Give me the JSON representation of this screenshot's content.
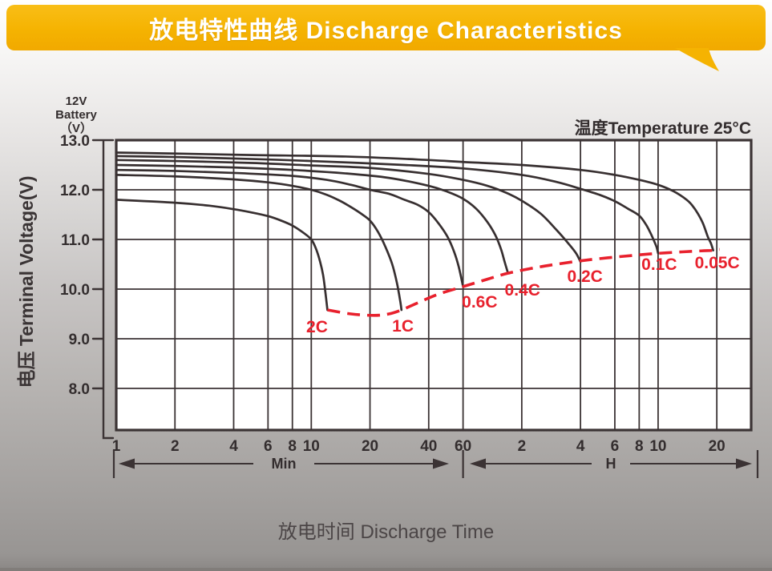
{
  "header": {
    "title": "放电特性曲线 Discharge Characteristics",
    "bg_color": "#F5B301",
    "text_color": "#FFFFFF"
  },
  "chart": {
    "unit_lines": [
      "12V",
      "Battery",
      "（V）"
    ],
    "temperature_note": "温度Temperature 25°C",
    "min_label": "Min",
    "h_label": "H"
  },
  "colors": {
    "curve": "#372f30",
    "grid": "#3b3334",
    "cutoff_red": "#e8212d",
    "axis_text": "#332d2e",
    "banner_yellow": "#f5b301",
    "plot_bg": "#ffffff"
  },
  "chart_data": {
    "type": "line",
    "title": "放电特性曲线 Discharge Characteristics",
    "xlabel": "放电时间 Discharge Time",
    "ylabel": "电压 Terminal Voltage(V)",
    "x_scale": "log",
    "x_unit": "minutes",
    "x_range_min": [
      1,
      1800
    ],
    "x_ticks_min": [
      1,
      2,
      4,
      6,
      8,
      10,
      20,
      40,
      60
    ],
    "x_ticks_hours": [
      2,
      4,
      6,
      8,
      10,
      20
    ],
    "y_ticks": [
      13.0,
      12.0,
      11.0,
      10.0,
      9.0,
      8.0
    ],
    "ylim": [
      7.2,
      13.0
    ],
    "grid": true,
    "temperature": "温度Temperature 25°C",
    "series": [
      {
        "name": "0.05C",
        "label": "0.05C",
        "label_at": [
          1205,
          10.53
        ],
        "points": [
          [
            1,
            12.75
          ],
          [
            2,
            12.73
          ],
          [
            5,
            12.7
          ],
          [
            15,
            12.67
          ],
          [
            40,
            12.6
          ],
          [
            60,
            12.56
          ],
          [
            120,
            12.5
          ],
          [
            240,
            12.4
          ],
          [
            360,
            12.3
          ],
          [
            480,
            12.2
          ],
          [
            600,
            12.1
          ],
          [
            720,
            11.97
          ],
          [
            840,
            11.8
          ],
          [
            900,
            11.68
          ],
          [
            960,
            11.52
          ],
          [
            1020,
            11.32
          ],
          [
            1080,
            11.05
          ],
          [
            1120,
            10.92
          ],
          [
            1150,
            10.78
          ]
        ]
      },
      {
        "name": "0.1C",
        "label": "0.1C",
        "label_at": [
          608,
          10.5
        ],
        "points": [
          [
            1,
            12.68
          ],
          [
            2,
            12.66
          ],
          [
            5,
            12.62
          ],
          [
            10,
            12.58
          ],
          [
            30,
            12.5
          ],
          [
            60,
            12.43
          ],
          [
            120,
            12.3
          ],
          [
            180,
            12.16
          ],
          [
            240,
            12.02
          ],
          [
            300,
            11.9
          ],
          [
            360,
            11.77
          ],
          [
            420,
            11.62
          ],
          [
            480,
            11.48
          ],
          [
            520,
            11.3
          ],
          [
            550,
            11.12
          ],
          [
            575,
            10.95
          ],
          [
            590,
            10.84
          ],
          [
            600,
            10.72
          ]
        ]
      },
      {
        "name": "0.2C",
        "label": "0.2C",
        "label_at": [
          253,
          10.26
        ],
        "points": [
          [
            1,
            12.6
          ],
          [
            2,
            12.58
          ],
          [
            5,
            12.54
          ],
          [
            10,
            12.49
          ],
          [
            20,
            12.44
          ],
          [
            40,
            12.32
          ],
          [
            60,
            12.2
          ],
          [
            80,
            12.08
          ],
          [
            100,
            11.94
          ],
          [
            120,
            11.78
          ],
          [
            150,
            11.52
          ],
          [
            180,
            11.2
          ],
          [
            210,
            10.9
          ],
          [
            228,
            10.72
          ],
          [
            240,
            10.55
          ]
        ]
      },
      {
        "name": "0.4C",
        "label": "0.4C",
        "label_at": [
          121,
          9.98
        ],
        "points": [
          [
            1,
            12.5
          ],
          [
            2,
            12.48
          ],
          [
            4,
            12.45
          ],
          [
            8,
            12.4
          ],
          [
            15,
            12.33
          ],
          [
            25,
            12.24
          ],
          [
            40,
            12.08
          ],
          [
            50,
            11.96
          ],
          [
            60,
            11.82
          ],
          [
            70,
            11.62
          ],
          [
            80,
            11.35
          ],
          [
            88,
            11.08
          ],
          [
            94,
            10.8
          ],
          [
            98,
            10.55
          ],
          [
            102,
            10.32
          ]
        ]
      },
      {
        "name": "0.6C",
        "label": "0.6C",
        "label_at": [
          73,
          9.74
        ],
        "points": [
          [
            1,
            12.4
          ],
          [
            2,
            12.38
          ],
          [
            4,
            12.34
          ],
          [
            8,
            12.28
          ],
          [
            12,
            12.2
          ],
          [
            16,
            12.1
          ],
          [
            20,
            12.0
          ],
          [
            25,
            11.92
          ],
          [
            30,
            11.8
          ],
          [
            35,
            11.7
          ],
          [
            40,
            11.55
          ],
          [
            45,
            11.32
          ],
          [
            50,
            11.05
          ],
          [
            54,
            10.75
          ],
          [
            57,
            10.45
          ],
          [
            60,
            10.05
          ]
        ]
      },
      {
        "name": "1C",
        "label": "1C",
        "label_at": [
          29.5,
          9.26
        ],
        "points": [
          [
            1,
            12.3
          ],
          [
            2,
            12.27
          ],
          [
            4,
            12.21
          ],
          [
            6,
            12.15
          ],
          [
            8,
            12.08
          ],
          [
            10,
            12.0
          ],
          [
            12,
            11.9
          ],
          [
            14,
            11.78
          ],
          [
            16,
            11.65
          ],
          [
            18,
            11.52
          ],
          [
            20,
            11.38
          ],
          [
            22,
            11.15
          ],
          [
            24,
            10.85
          ],
          [
            26,
            10.5
          ],
          [
            27.5,
            10.12
          ],
          [
            28.6,
            9.75
          ],
          [
            29,
            9.58
          ]
        ]
      },
      {
        "name": "2C",
        "label": "2C",
        "label_at": [
          10.7,
          9.24
        ],
        "points": [
          [
            1,
            11.8
          ],
          [
            2,
            11.74
          ],
          [
            3,
            11.68
          ],
          [
            4,
            11.61
          ],
          [
            5,
            11.54
          ],
          [
            6,
            11.47
          ],
          [
            7,
            11.38
          ],
          [
            8,
            11.28
          ],
          [
            9,
            11.15
          ],
          [
            10,
            11.0
          ],
          [
            10.6,
            10.8
          ],
          [
            11.1,
            10.55
          ],
          [
            11.5,
            10.28
          ],
          [
            11.8,
            9.95
          ],
          [
            12.1,
            9.58
          ]
        ]
      }
    ],
    "cutoff_line": {
      "name": "discharge-end-voltage-line",
      "color": "#e8212d",
      "style": "dashed",
      "points": [
        [
          12.1,
          9.58
        ],
        [
          16,
          9.5
        ],
        [
          21,
          9.47
        ],
        [
          25,
          9.5
        ],
        [
          29,
          9.58
        ],
        [
          35,
          9.72
        ],
        [
          45,
          9.9
        ],
        [
          60,
          10.05
        ],
        [
          80,
          10.2
        ],
        [
          102,
          10.32
        ],
        [
          140,
          10.43
        ],
        [
          180,
          10.5
        ],
        [
          240,
          10.57
        ],
        [
          330,
          10.63
        ],
        [
          450,
          10.68
        ],
        [
          600,
          10.72
        ],
        [
          800,
          10.75
        ],
        [
          1000,
          10.77
        ],
        [
          1150,
          10.78
        ],
        [
          1240,
          10.8
        ]
      ]
    },
    "legend_position": "inline-labels"
  }
}
